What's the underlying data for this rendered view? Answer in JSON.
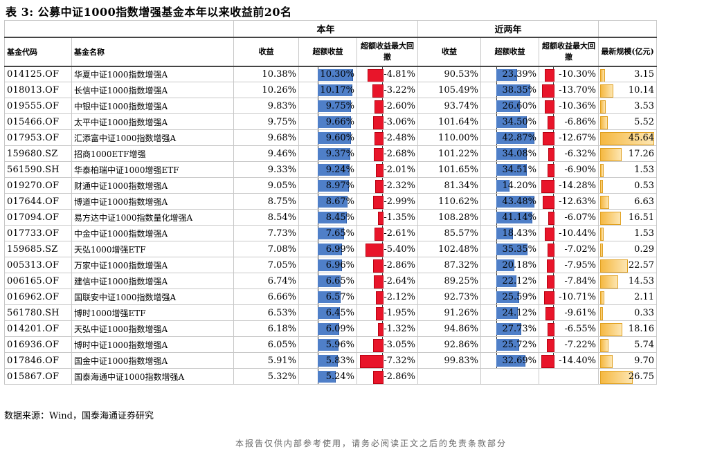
{
  "title": "表 3:   公募中证1000指数增强基金本年以来收益前20名",
  "groups": {
    "this_year": "本年",
    "two_years": "近两年"
  },
  "headers": {
    "code": "基金代码",
    "name": "基金名称",
    "ret": "收益",
    "excess": "超额收益",
    "mdd": "超额收益最大回撤",
    "ret2": "收益",
    "excess2": "超额收益",
    "mdd2": "超额收益最大回撤",
    "size": "最新规模(亿元)"
  },
  "rows": [
    {
      "code": "014125.OF",
      "name": "华夏中证1000指数增强A",
      "ret": "10.38%",
      "excess": "10.30%",
      "mdd": "-4.81%",
      "ret2": "90.53%",
      "excess2": "23.39%",
      "mdd2": "-10.30%",
      "size": "3.15"
    },
    {
      "code": "018013.OF",
      "name": "长信中证1000指数增强A",
      "ret": "10.26%",
      "excess": "10.17%",
      "mdd": "-3.22%",
      "ret2": "105.49%",
      "excess2": "38.35%",
      "mdd2": "-13.70%",
      "size": "10.14"
    },
    {
      "code": "019555.OF",
      "name": "中银中证1000指数增强A",
      "ret": "9.83%",
      "excess": "9.75%",
      "mdd": "-2.60%",
      "ret2": "93.74%",
      "excess2": "26.60%",
      "mdd2": "-10.36%",
      "size": "3.53"
    },
    {
      "code": "015466.OF",
      "name": "太平中证1000指数增强A",
      "ret": "9.75%",
      "excess": "9.66%",
      "mdd": "-3.06%",
      "ret2": "101.64%",
      "excess2": "34.50%",
      "mdd2": "-6.86%",
      "size": "5.52"
    },
    {
      "code": "017953.OF",
      "name": "汇添富中证1000指数增强A",
      "ret": "9.68%",
      "excess": "9.60%",
      "mdd": "-2.48%",
      "ret2": "110.00%",
      "excess2": "42.87%",
      "mdd2": "-12.67%",
      "size": "45.64"
    },
    {
      "code": "159680.SZ",
      "name": "招商1000ETF增强",
      "ret": "9.46%",
      "excess": "9.37%",
      "mdd": "-2.68%",
      "ret2": "101.22%",
      "excess2": "34.08%",
      "mdd2": "-6.32%",
      "size": "17.26"
    },
    {
      "code": "561590.SH",
      "name": "华泰柏瑞中证1000增强ETF",
      "ret": "9.33%",
      "excess": "9.24%",
      "mdd": "-2.01%",
      "ret2": "101.65%",
      "excess2": "34.51%",
      "mdd2": "-6.90%",
      "size": "1.53"
    },
    {
      "code": "019270.OF",
      "name": "财通中证1000指数增强A",
      "ret": "9.05%",
      "excess": "8.97%",
      "mdd": "-2.32%",
      "ret2": "81.34%",
      "excess2": "14.20%",
      "mdd2": "-14.28%",
      "size": "0.53"
    },
    {
      "code": "017644.OF",
      "name": "博道中证1000指数增强A",
      "ret": "8.75%",
      "excess": "8.67%",
      "mdd": "-2.99%",
      "ret2": "110.62%",
      "excess2": "43.48%",
      "mdd2": "-12.63%",
      "size": "6.63"
    },
    {
      "code": "017094.OF",
      "name": "易方达中证1000指数量化增强A",
      "ret": "8.54%",
      "excess": "8.45%",
      "mdd": "-1.35%",
      "ret2": "108.28%",
      "excess2": "41.14%",
      "mdd2": "-6.07%",
      "size": "16.51"
    },
    {
      "code": "017733.OF",
      "name": "中金中证1000指数增强A",
      "ret": "7.73%",
      "excess": "7.65%",
      "mdd": "-2.61%",
      "ret2": "85.57%",
      "excess2": "18.43%",
      "mdd2": "-10.44%",
      "size": "1.53"
    },
    {
      "code": "159685.SZ",
      "name": "天弘1000增强ETF",
      "ret": "7.08%",
      "excess": "6.99%",
      "mdd": "-5.40%",
      "ret2": "102.48%",
      "excess2": "35.35%",
      "mdd2": "-7.02%",
      "size": "0.29"
    },
    {
      "code": "005313.OF",
      "name": "万家中证1000指数增强A",
      "ret": "7.05%",
      "excess": "6.96%",
      "mdd": "-2.86%",
      "ret2": "87.32%",
      "excess2": "20.18%",
      "mdd2": "-7.95%",
      "size": "22.57"
    },
    {
      "code": "006165.OF",
      "name": "建信中证1000指数增强A",
      "ret": "6.74%",
      "excess": "6.65%",
      "mdd": "-2.64%",
      "ret2": "89.25%",
      "excess2": "22.12%",
      "mdd2": "-7.84%",
      "size": "14.53"
    },
    {
      "code": "016962.OF",
      "name": "国联安中证1000指数增强A",
      "ret": "6.66%",
      "excess": "6.57%",
      "mdd": "-2.12%",
      "ret2": "92.73%",
      "excess2": "25.59%",
      "mdd2": "-10.71%",
      "size": "2.11"
    },
    {
      "code": "561780.SH",
      "name": "博时1000增强ETF",
      "ret": "6.53%",
      "excess": "6.45%",
      "mdd": "-1.95%",
      "ret2": "91.26%",
      "excess2": "24.12%",
      "mdd2": "-9.61%",
      "size": "0.33"
    },
    {
      "code": "014201.OF",
      "name": "天弘中证1000指数增强A",
      "ret": "6.18%",
      "excess": "6.09%",
      "mdd": "-1.32%",
      "ret2": "94.86%",
      "excess2": "27.73%",
      "mdd2": "-6.55%",
      "size": "18.16"
    },
    {
      "code": "016936.OF",
      "name": "博时中证1000指数增强A",
      "ret": "6.05%",
      "excess": "5.96%",
      "mdd": "-3.05%",
      "ret2": "92.86%",
      "excess2": "25.72%",
      "mdd2": "-7.22%",
      "size": "5.74"
    },
    {
      "code": "017846.OF",
      "name": "国金中证1000指数增强A",
      "ret": "5.91%",
      "excess": "5.83%",
      "mdd": "-7.32%",
      "ret2": "99.83%",
      "excess2": "32.69%",
      "mdd2": "-14.40%",
      "size": "9.70"
    },
    {
      "code": "015867.OF",
      "name": "国泰海通中证1000指数增强A",
      "ret": "5.32%",
      "excess": "5.24%",
      "mdd": "-2.86%",
      "ret2": "",
      "excess2": "",
      "mdd2": "",
      "size": "26.75"
    }
  ],
  "source": "数据来源：Wind，国泰海通证券研究",
  "footer": "本报告仅供内部参考使用，请务必阅读正文之后的免责条款部分",
  "colors": {
    "excess_bar": "#4f7fc8",
    "drawdown_bar": "#e8152a",
    "size_bar": "#f5b841"
  }
}
